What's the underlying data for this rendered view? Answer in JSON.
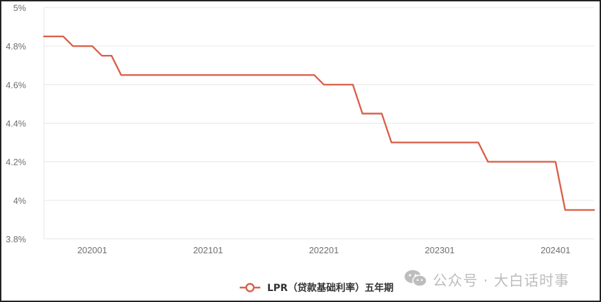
{
  "chart_data": {
    "type": "line",
    "title": "",
    "xlabel": "",
    "ylabel": "",
    "ylim": [
      3.8,
      5.0
    ],
    "y_ticks": [
      "3.8%",
      "4%",
      "4.2%",
      "4.4%",
      "4.6%",
      "4.8%",
      "5%"
    ],
    "x_tick_labels": [
      "202001",
      "202101",
      "202201",
      "202301",
      "202401"
    ],
    "grid": true,
    "legend_position": "bottom",
    "colors": {
      "line": "#d9604a",
      "grid": "#e6e6e6",
      "tick_text": "#6e6e6e",
      "legend_text": "#333333",
      "watermark": "#bdbdbd"
    },
    "series": [
      {
        "name": "LPR（贷款基础利率）五年期",
        "x": [
          "201908",
          "201909",
          "201910",
          "201911",
          "201912",
          "202001",
          "202002",
          "202003",
          "202004",
          "202005",
          "202006",
          "202007",
          "202008",
          "202009",
          "202010",
          "202011",
          "202012",
          "202101",
          "202102",
          "202103",
          "202104",
          "202105",
          "202106",
          "202107",
          "202108",
          "202109",
          "202110",
          "202111",
          "202112",
          "202201",
          "202202",
          "202203",
          "202204",
          "202205",
          "202206",
          "202207",
          "202208",
          "202209",
          "202210",
          "202211",
          "202212",
          "202301",
          "202302",
          "202303",
          "202304",
          "202305",
          "202306",
          "202307",
          "202308",
          "202309",
          "202310",
          "202311",
          "202312",
          "202401",
          "202402",
          "202403",
          "202404",
          "202405"
        ],
        "values": [
          4.85,
          4.85,
          4.85,
          4.8,
          4.8,
          4.8,
          4.75,
          4.75,
          4.65,
          4.65,
          4.65,
          4.65,
          4.65,
          4.65,
          4.65,
          4.65,
          4.65,
          4.65,
          4.65,
          4.65,
          4.65,
          4.65,
          4.65,
          4.65,
          4.65,
          4.65,
          4.65,
          4.65,
          4.65,
          4.6,
          4.6,
          4.6,
          4.6,
          4.45,
          4.45,
          4.45,
          4.3,
          4.3,
          4.3,
          4.3,
          4.3,
          4.3,
          4.3,
          4.3,
          4.3,
          4.3,
          4.2,
          4.2,
          4.2,
          4.2,
          4.2,
          4.2,
          4.2,
          4.2,
          3.95,
          3.95,
          3.95,
          3.95
        ]
      }
    ]
  },
  "watermark": {
    "text": "公众号 · 大白话时事",
    "icon": "wechat-icon"
  }
}
